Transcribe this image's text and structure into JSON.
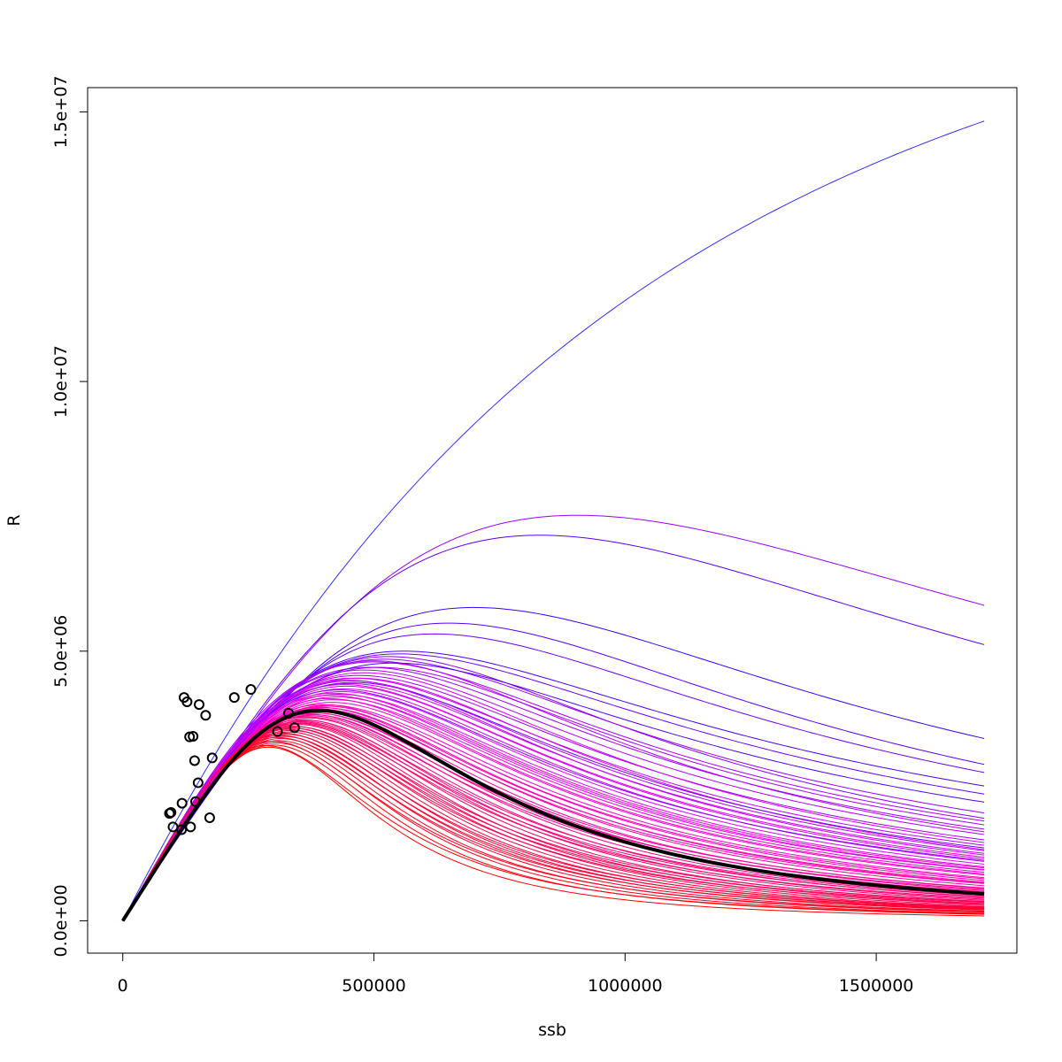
{
  "chart_data": {
    "type": "line",
    "title": "",
    "xlabel": "ssb",
    "ylabel": "R",
    "xlim": [
      -70000,
      1780000
    ],
    "ylim": [
      -600000,
      15450000
    ],
    "x_ticks": [
      0,
      500000,
      1000000,
      1500000
    ],
    "x_tick_labels": [
      "0",
      "500000",
      "1000000",
      "1500000"
    ],
    "y_ticks": [
      0,
      5000000,
      10000000,
      15000000
    ],
    "y_tick_labels": [
      "0.0e+00",
      "5.0e+06",
      "1.0e+07",
      "1.5e+07"
    ],
    "x_max": 1715000,
    "grid": false,
    "legend": "none",
    "colors": {
      "low": "#ff0000",
      "mid": "#ff00ff",
      "high": "#0000ff",
      "fit": "#000000"
    },
    "fit_curve": {
      "name": "",
      "peak_ssb": 390000,
      "peak_R": 3900000,
      "end_R": 500000,
      "color": "#000000"
    },
    "simulated_curves": [
      {
        "peak_ssb": 905000,
        "peak_R": 7520000,
        "end_R": 5850000,
        "color": "#9a00ff"
      },
      {
        "peak_ssb": 830000,
        "peak_R": 7150000,
        "end_R": 5120000,
        "color": "#5a00ff"
      },
      {
        "peak_ssb": 700000,
        "peak_R": 5810000,
        "end_R": 3380000,
        "color": "#3a00ff"
      },
      {
        "peak_ssb": 650000,
        "peak_R": 5520000,
        "end_R": 2900000,
        "color": "#5a00ff"
      },
      {
        "peak_ssb": 620000,
        "peak_R": 5320000,
        "end_R": 2750000,
        "color": "#6a00ff"
      },
      {
        "peak_ssb": 560000,
        "peak_R": 5000000,
        "end_R": 2500000,
        "color": "#4a00ff"
      },
      {
        "peak_ssb": 550000,
        "peak_R": 4950000,
        "end_R": 2350000,
        "color": "#6a00ff"
      },
      {
        "peak_ssb": 530000,
        "peak_R": 4900000,
        "end_R": 1900000,
        "color": "#8800ff"
      },
      {
        "peak_ssb": 520000,
        "peak_R": 4850000,
        "end_R": 2000000,
        "color": "#9900ff"
      },
      {
        "peak_ssb": 500000,
        "peak_R": 4800000,
        "end_R": 1850000,
        "color": "#aa00ff"
      },
      {
        "peak_ssb": 490000,
        "peak_R": 4700000,
        "end_R": 1700000,
        "color": "#9a00ff"
      },
      {
        "peak_ssb": 480000,
        "peak_R": 4650000,
        "end_R": 1600000,
        "color": "#b000ff"
      },
      {
        "peak_ssb": 470000,
        "peak_R": 4550000,
        "end_R": 1500000,
        "color": "#a000ff"
      },
      {
        "peak_ssb": 460000,
        "peak_R": 4500000,
        "end_R": 1400000,
        "color": "#c000ff"
      },
      {
        "peak_ssb": 455000,
        "peak_R": 4450000,
        "end_R": 1300000,
        "color": "#b800ff"
      },
      {
        "peak_ssb": 450000,
        "peak_R": 4400000,
        "end_R": 1250000,
        "color": "#cc00ff"
      },
      {
        "peak_ssb": 445000,
        "peak_R": 4350000,
        "end_R": 1150000,
        "color": "#d000ff"
      },
      {
        "peak_ssb": 440000,
        "peak_R": 4300000,
        "end_R": 1100000,
        "color": "#c800ff"
      },
      {
        "peak_ssb": 435000,
        "peak_R": 4250000,
        "end_R": 1050000,
        "color": "#dd00ff"
      },
      {
        "peak_ssb": 430000,
        "peak_R": 4200000,
        "end_R": 1000000,
        "color": "#e000f0"
      },
      {
        "peak_ssb": 425000,
        "peak_R": 4150000,
        "end_R": 950000,
        "color": "#e800e8"
      },
      {
        "peak_ssb": 420000,
        "peak_R": 4100000,
        "end_R": 900000,
        "color": "#f000e0"
      },
      {
        "peak_ssb": 415000,
        "peak_R": 4050000,
        "end_R": 850000,
        "color": "#f000d0"
      },
      {
        "peak_ssb": 410000,
        "peak_R": 4000000,
        "end_R": 800000,
        "color": "#f800c8"
      },
      {
        "peak_ssb": 405000,
        "peak_R": 3980000,
        "end_R": 750000,
        "color": "#ff00c0"
      },
      {
        "peak_ssb": 400000,
        "peak_R": 3950000,
        "end_R": 700000,
        "color": "#ff00b0"
      },
      {
        "peak_ssb": 395000,
        "peak_R": 3920000,
        "end_R": 650000,
        "color": "#ff00a8"
      },
      {
        "peak_ssb": 390000,
        "peak_R": 3880000,
        "end_R": 600000,
        "color": "#ff00a0"
      },
      {
        "peak_ssb": 385000,
        "peak_R": 3850000,
        "end_R": 560000,
        "color": "#ff0098"
      },
      {
        "peak_ssb": 380000,
        "peak_R": 3820000,
        "end_R": 520000,
        "color": "#ff0090"
      },
      {
        "peak_ssb": 375000,
        "peak_R": 3800000,
        "end_R": 480000,
        "color": "#ff0088"
      },
      {
        "peak_ssb": 370000,
        "peak_R": 3760000,
        "end_R": 440000,
        "color": "#ff0080"
      },
      {
        "peak_ssb": 365000,
        "peak_R": 3720000,
        "end_R": 400000,
        "color": "#ff0078"
      },
      {
        "peak_ssb": 360000,
        "peak_R": 3700000,
        "end_R": 380000,
        "color": "#ff0070"
      },
      {
        "peak_ssb": 355000,
        "peak_R": 3670000,
        "end_R": 350000,
        "color": "#ff0068"
      },
      {
        "peak_ssb": 350000,
        "peak_R": 3640000,
        "end_R": 320000,
        "color": "#ff0060"
      },
      {
        "peak_ssb": 345000,
        "peak_R": 3600000,
        "end_R": 300000,
        "color": "#ff0058"
      },
      {
        "peak_ssb": 340000,
        "peak_R": 3570000,
        "end_R": 280000,
        "color": "#ff0050"
      },
      {
        "peak_ssb": 335000,
        "peak_R": 3530000,
        "end_R": 260000,
        "color": "#ff0048"
      },
      {
        "peak_ssb": 330000,
        "peak_R": 3500000,
        "end_R": 240000,
        "color": "#ff0040"
      },
      {
        "peak_ssb": 325000,
        "peak_R": 3460000,
        "end_R": 220000,
        "color": "#ff0038"
      },
      {
        "peak_ssb": 320000,
        "peak_R": 3420000,
        "end_R": 200000,
        "color": "#ff0030"
      },
      {
        "peak_ssb": 315000,
        "peak_R": 3380000,
        "end_R": 180000,
        "color": "#ff0028"
      },
      {
        "peak_ssb": 310000,
        "peak_R": 3340000,
        "end_R": 160000,
        "color": "#ff0020"
      },
      {
        "peak_ssb": 305000,
        "peak_R": 3300000,
        "end_R": 140000,
        "color": "#ff0018"
      },
      {
        "peak_ssb": 300000,
        "peak_R": 3260000,
        "end_R": 120000,
        "color": "#ff0010"
      },
      {
        "peak_ssb": 290000,
        "peak_R": 3220000,
        "end_R": 90000,
        "color": "#ff0000"
      },
      {
        "peak_ssb": 500000,
        "peak_R": 4820000,
        "end_R": 1650000,
        "color": "#b400ff"
      },
      {
        "peak_ssb": 480000,
        "peak_R": 4600000,
        "end_R": 1450000,
        "color": "#d400f8"
      },
      {
        "peak_ssb": 470000,
        "peak_R": 4500000,
        "end_R": 1320000,
        "color": "#de00f0"
      },
      {
        "peak_ssb": 440000,
        "peak_R": 4380000,
        "end_R": 1180000,
        "color": "#ea00e0"
      },
      {
        "peak_ssb": 420000,
        "peak_R": 4220000,
        "end_R": 980000,
        "color": "#f400d4"
      },
      {
        "peak_ssb": 410000,
        "peak_R": 4120000,
        "end_R": 870000,
        "color": "#fa00c4"
      },
      {
        "peak_ssb": 398000,
        "peak_R": 4010000,
        "end_R": 780000,
        "color": "#ff00b8"
      },
      {
        "peak_ssb": 388000,
        "peak_R": 3930000,
        "end_R": 690000,
        "color": "#ff00ac"
      },
      {
        "peak_ssb": 378000,
        "peak_R": 3860000,
        "end_R": 610000,
        "color": "#ff009c"
      },
      {
        "peak_ssb": 368000,
        "peak_R": 3780000,
        "end_R": 540000,
        "color": "#ff008c"
      },
      {
        "peak_ssb": 358000,
        "peak_R": 3730000,
        "end_R": 470000,
        "color": "#ff007c"
      },
      {
        "peak_ssb": 348000,
        "peak_R": 3660000,
        "end_R": 420000,
        "color": "#ff006c"
      },
      {
        "peak_ssb": 338000,
        "peak_R": 3610000,
        "end_R": 360000,
        "color": "#ff005c"
      },
      {
        "peak_ssb": 328000,
        "peak_R": 3550000,
        "end_R": 310000,
        "color": "#ff004c"
      },
      {
        "peak_ssb": 318000,
        "peak_R": 3480000,
        "end_R": 250000,
        "color": "#ff003c"
      },
      {
        "peak_ssb": 308000,
        "peak_R": 3400000,
        "end_R": 210000,
        "color": "#ff002c"
      },
      {
        "peak_ssb": 298000,
        "peak_R": 3330000,
        "end_R": 170000,
        "color": "#ff001c"
      },
      {
        "peak_ssb": 285000,
        "peak_R": 3250000,
        "end_R": 130000,
        "color": "#ff0008"
      },
      {
        "peak_ssb": 430000,
        "peak_R": 4280000,
        "end_R": 1120000,
        "color": "#8800ff"
      },
      {
        "peak_ssb": 460000,
        "peak_R": 4420000,
        "end_R": 1350000,
        "color": "#7000ff"
      },
      {
        "peak_ssb": 540000,
        "peak_R": 4780000,
        "end_R": 2200000,
        "color": "#5000ff"
      },
      {
        "peak_ssb": 510000,
        "peak_R": 4700000,
        "end_R": 1780000,
        "color": "#a800ff"
      },
      {
        "peak_ssb": 450000,
        "peak_R": 4460000,
        "end_R": 1220000,
        "color": "#c400ff"
      },
      {
        "peak_ssb": 415000,
        "peak_R": 4180000,
        "end_R": 940000,
        "color": "#e400e8"
      },
      {
        "peak_ssb": 392000,
        "peak_R": 3960000,
        "end_R": 720000,
        "color": "#ff00b4"
      },
      {
        "peak_ssb": 372000,
        "peak_R": 3830000,
        "end_R": 580000,
        "color": "#ff0094"
      },
      {
        "peak_ssb": 352000,
        "peak_R": 3690000,
        "end_R": 450000,
        "color": "#ff0074"
      },
      {
        "peak_ssb": 332000,
        "peak_R": 3580000,
        "end_R": 340000,
        "color": "#ff0054"
      },
      {
        "peak_ssb": 312000,
        "peak_R": 3440000,
        "end_R": 230000,
        "color": "#ff0034"
      }
    ],
    "rising_curve": {
      "name": "",
      "at_ssb_1715000": 14830000,
      "color": "#3030ff"
    },
    "observations": {
      "ssb": [
        255000,
        222000,
        122000,
        128000,
        152000,
        165000,
        330000,
        342000,
        308000,
        133000,
        140000,
        143000,
        178000,
        150000,
        145000,
        96000,
        93000,
        118000,
        100000,
        117000,
        135000,
        173000
      ],
      "R": [
        4290000,
        4140000,
        4140000,
        4060000,
        4010000,
        3810000,
        3850000,
        3580000,
        3510000,
        3410000,
        3420000,
        2970000,
        3020000,
        2560000,
        2210000,
        2010000,
        1990000,
        2180000,
        1740000,
        1690000,
        1740000,
        1910000
      ]
    }
  }
}
